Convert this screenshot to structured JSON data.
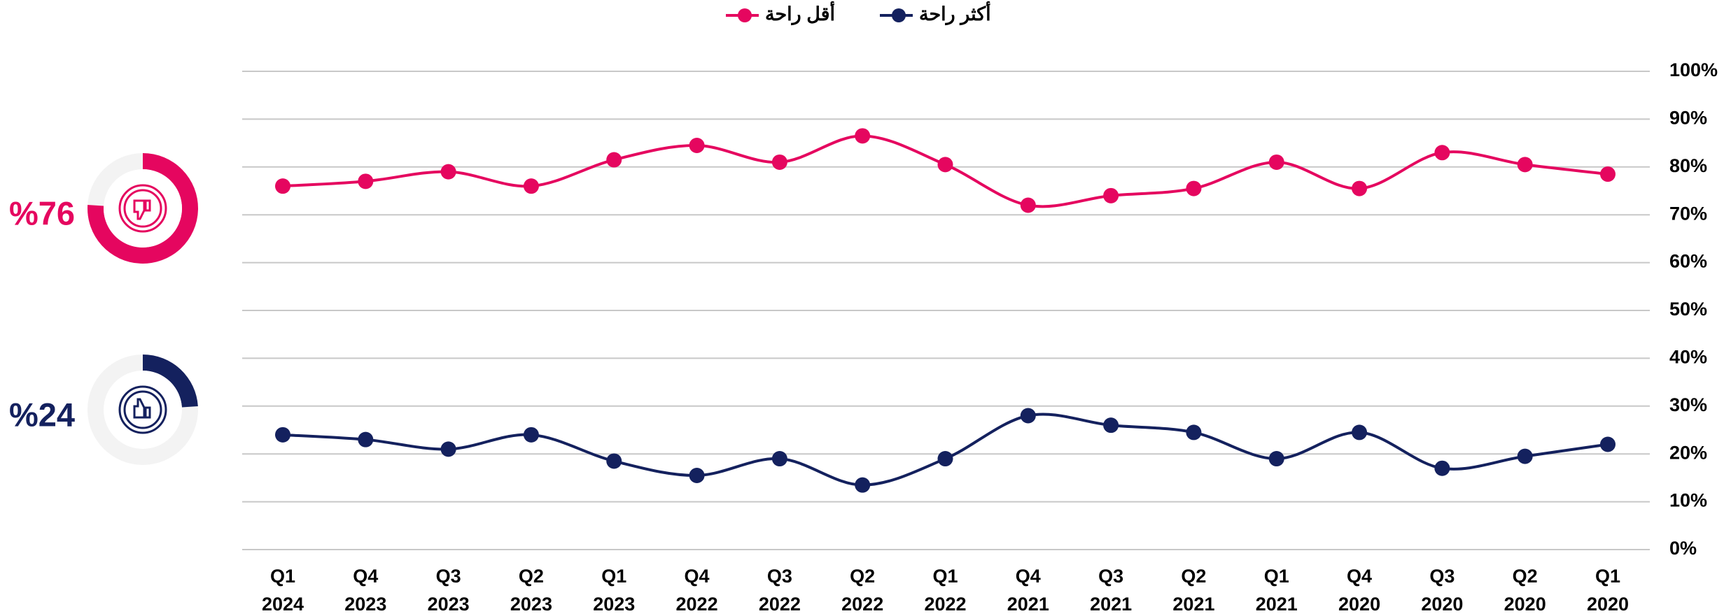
{
  "chart_data": {
    "type": "line",
    "categories": [
      [
        "Q1",
        "2024"
      ],
      [
        "Q4",
        "2023"
      ],
      [
        "Q3",
        "2023"
      ],
      [
        "Q2",
        "2023"
      ],
      [
        "Q1",
        "2023"
      ],
      [
        "Q4",
        "2022"
      ],
      [
        "Q3",
        "2022"
      ],
      [
        "Q2",
        "2022"
      ],
      [
        "Q1",
        "2022"
      ],
      [
        "Q4",
        "2021"
      ],
      [
        "Q3",
        "2021"
      ],
      [
        "Q2",
        "2021"
      ],
      [
        "Q1",
        "2021"
      ],
      [
        "Q4",
        "2020"
      ],
      [
        "Q3",
        "2020"
      ],
      [
        "Q2",
        "2020"
      ],
      [
        "Q1",
        "2020"
      ]
    ],
    "series": [
      {
        "name": "أقل راحة",
        "color": "#e5065f",
        "values": [
          76,
          77,
          79,
          76,
          81.5,
          84.5,
          81,
          86.5,
          80.5,
          72,
          74,
          75.5,
          81,
          75.5,
          83,
          80.5,
          78.5
        ]
      },
      {
        "name": "أكثر راحة",
        "color": "#14215e",
        "values": [
          24,
          23,
          21,
          24,
          18.5,
          15.5,
          19,
          13.5,
          19,
          28,
          26,
          24.5,
          19,
          24.5,
          17,
          19.5,
          22
        ]
      }
    ],
    "ylim": [
      0,
      100
    ],
    "yticks": [
      {
        "value": 0,
        "label": "0%"
      },
      {
        "value": 10,
        "label": "10%"
      },
      {
        "value": 20,
        "label": "20%"
      },
      {
        "value": 30,
        "label": "30%"
      },
      {
        "value": 40,
        "label": "40%"
      },
      {
        "value": 50,
        "label": "50%"
      },
      {
        "value": 60,
        "label": "60%"
      },
      {
        "value": 70,
        "label": "70%"
      },
      {
        "value": 80,
        "label": "80%"
      },
      {
        "value": 90,
        "label": "90%"
      },
      {
        "value": 100,
        "label": "100%"
      }
    ],
    "grid": true,
    "smooth": true
  },
  "summary": [
    {
      "label": "%76",
      "value": 76,
      "color": "#e5065f"
    },
    {
      "label": "%24",
      "value": 24,
      "color": "#14215e"
    }
  ]
}
